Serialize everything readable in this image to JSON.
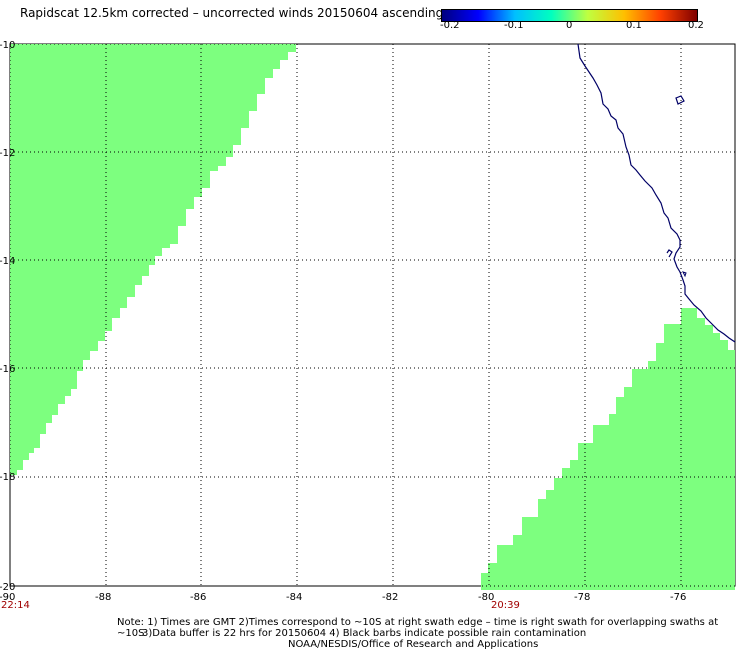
{
  "title": "Rapidscat 12.5km corrected – uncorrected winds 20150604 ascending",
  "colorbar": {
    "min": -0.2,
    "max": 0.2,
    "tick_labels": [
      "-0.2",
      "-0.1",
      "0",
      "0.1",
      "0.2"
    ],
    "colors": [
      "#00007f",
      "#0000ff",
      "#00bfff",
      "#00ffbf",
      "#bfff40",
      "#ffbf00",
      "#ff4000",
      "#7f0000"
    ]
  },
  "map": {
    "x_ticks": [
      "-90",
      "-88",
      "-86",
      "-84",
      "-82",
      "-80",
      "-78",
      "-76"
    ],
    "y_ticks": [
      "-10",
      "-12",
      "-14",
      "-16",
      "-18",
      "-20"
    ],
    "swath_color": "#7dff7f",
    "coast_color": "#000066"
  },
  "times": {
    "left": "22:14",
    "right": "20:39"
  },
  "notes": {
    "line1": "Note: 1) Times are GMT 2)Times correspond to ~10S at right swath edge – time is right swath for overlapping swaths at ~10S",
    "line2": "3)Data buffer is 22 hrs for 20150604 4) Black barbs indicate possible rain contamination",
    "line3": "NOAA/NESDIS/Office of Research and Applications"
  }
}
